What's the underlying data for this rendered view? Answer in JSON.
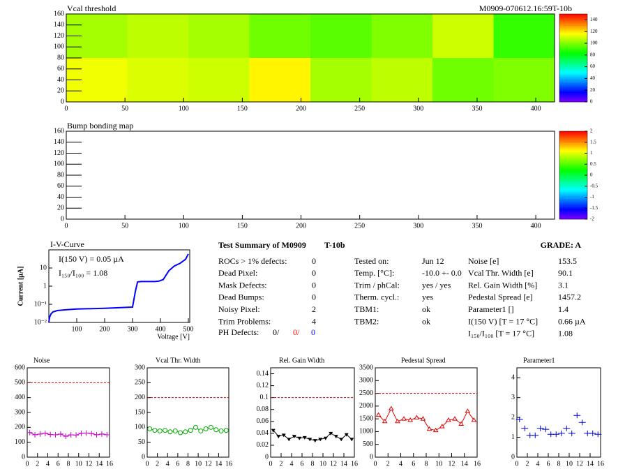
{
  "chart_data": [
    {
      "type": "heatmap",
      "title": "Vcal threshold",
      "subtitle": "M0909-070612.16:59T-10b",
      "xbins": [
        0,
        52,
        104,
        156,
        208,
        260,
        312,
        364,
        416
      ],
      "ybins": [
        0,
        80,
        160
      ],
      "values": [
        [
          115,
          112,
          110,
          118,
          105,
          108,
          98,
          100
        ],
        [
          105,
          108,
          105,
          98,
          95,
          100,
          110,
          90
        ]
      ],
      "xlim": [
        0,
        416
      ],
      "xticks": [
        0,
        50,
        100,
        150,
        200,
        250,
        300,
        350,
        400
      ],
      "ylim": [
        0,
        160
      ],
      "yticks": [
        0,
        20,
        40,
        60,
        80,
        100,
        120,
        140,
        160
      ],
      "zlim": [
        0,
        150
      ],
      "zticks": [
        0,
        20,
        40,
        60,
        80,
        100,
        120,
        140
      ]
    },
    {
      "type": "heatmap",
      "title": "Bump bonding map",
      "xbins": [
        0,
        52,
        104,
        156,
        208,
        260,
        312,
        364,
        416
      ],
      "ybins": [
        0,
        80,
        160
      ],
      "values": [],
      "xlim": [
        0,
        416
      ],
      "xticks": [
        0,
        50,
        100,
        150,
        200,
        250,
        300,
        350,
        400
      ],
      "ylim": [
        0,
        160
      ],
      "yticks": [
        0,
        20,
        40,
        60,
        80,
        100,
        120,
        140,
        160
      ],
      "zlim": [
        -2,
        2
      ],
      "zticks": [
        -2,
        -1.5,
        -1,
        -0.5,
        0,
        0.5,
        1,
        1.5,
        2
      ]
    },
    {
      "type": "line",
      "title": "I-V-Curve",
      "xlabel": "Voltage [V]",
      "ylabel": "Current [µA]",
      "annotations": [
        "I(150 V) = 0.05 µA",
        "I₁₅₀/I₁₀₀ =  1.08"
      ],
      "x": [
        0,
        3,
        8,
        15,
        30,
        60,
        100,
        200,
        300,
        310,
        318,
        330,
        360,
        380,
        395,
        410,
        430,
        450,
        470,
        490,
        500
      ],
      "values": [
        0.01,
        0.02,
        0.03,
        0.038,
        0.045,
        0.05,
        0.055,
        0.06,
        0.07,
        0.5,
        1.7,
        1.8,
        1.8,
        1.8,
        1.9,
        2.3,
        7,
        13,
        18,
        30,
        60
      ],
      "color": "#0000ff",
      "log_y": true,
      "xlim": [
        0,
        505
      ],
      "xticks": [
        100,
        200,
        300,
        400,
        500
      ],
      "ylim": [
        0.01,
        100
      ],
      "yticks": [
        {
          "value": 0.01,
          "label": "10⁻²"
        },
        {
          "value": 0.1,
          "label": "10⁻¹"
        },
        1,
        10
      ]
    },
    {
      "type": "line",
      "title": "Noise",
      "color": "#cc00cc",
      "marker": "plus",
      "connect": true,
      "ref_line": 500,
      "x": [
        0.5,
        1.5,
        2.5,
        3.5,
        4.5,
        5.5,
        6.5,
        7.5,
        8.5,
        9.5,
        10.5,
        11.5,
        12.5,
        13.5,
        14.5,
        15.5
      ],
      "values": [
        165,
        150,
        155,
        160,
        152,
        150,
        155,
        140,
        150,
        148,
        160,
        162,
        158,
        150,
        155,
        150
      ],
      "xlim": [
        0,
        16
      ],
      "xticks": [
        0,
        2,
        4,
        6,
        8,
        10,
        12,
        14,
        16
      ],
      "ylim": [
        0,
        600
      ],
      "yticks": [
        0,
        100,
        200,
        300,
        400,
        500,
        600
      ]
    },
    {
      "type": "line",
      "title": "Vcal Thr. Width",
      "color": "#00aa00",
      "marker": "circle",
      "connect": true,
      "ref_line": 200,
      "x": [
        0.5,
        1.5,
        2.5,
        3.5,
        4.5,
        5.5,
        6.5,
        7.5,
        8.5,
        9.5,
        10.5,
        11.5,
        12.5,
        13.5,
        14.5,
        15.5
      ],
      "values": [
        95,
        90,
        88,
        90,
        85,
        88,
        82,
        85,
        90,
        100,
        88,
        95,
        100,
        92,
        88,
        90
      ],
      "xlim": [
        0,
        16
      ],
      "xticks": [
        0,
        2,
        4,
        6,
        8,
        10,
        12,
        14,
        16
      ],
      "ylim": [
        0,
        300
      ],
      "yticks": [
        0,
        50,
        100,
        150,
        200,
        250,
        300
      ]
    },
    {
      "type": "line",
      "title": "Rel. Gain Width",
      "color": "#000000",
      "marker": "triangle",
      "connect": true,
      "ref_line": 0.1,
      "x": [
        0.5,
        1.5,
        2.5,
        3.5,
        4.5,
        5.5,
        6.5,
        7.5,
        8.5,
        9.5,
        10.5,
        11.5,
        12.5,
        13.5,
        14.5,
        15.5
      ],
      "values": [
        0.045,
        0.035,
        0.037,
        0.03,
        0.035,
        0.032,
        0.033,
        0.03,
        0.028,
        0.03,
        0.032,
        0.04,
        0.035,
        0.03,
        0.038,
        0.03
      ],
      "xlim": [
        0,
        16
      ],
      "xticks": [
        0,
        2,
        4,
        6,
        8,
        10,
        12,
        14,
        16
      ],
      "ylim": [
        0,
        0.15
      ],
      "yticks": [
        0,
        0.02,
        0.04,
        0.06,
        0.08,
        0.1,
        0.12,
        0.14
      ]
    },
    {
      "type": "line",
      "title": "Pedestal Spread",
      "color": "#dd0000",
      "marker": "triangle-open",
      "connect": true,
      "ref_line": 2500,
      "x": [
        0.5,
        1.5,
        2.5,
        3.5,
        4.5,
        5.5,
        6.5,
        7.5,
        8.5,
        9.5,
        10.5,
        11.5,
        12.5,
        13.5,
        14.5,
        15.5
      ],
      "values": [
        1650,
        1400,
        1900,
        1400,
        1500,
        1450,
        1550,
        1500,
        1100,
        1050,
        1200,
        1450,
        1500,
        1300,
        1800,
        1450
      ],
      "xlim": [
        0,
        16
      ],
      "xticks": [
        0,
        2,
        4,
        6,
        8,
        10,
        12,
        14,
        16
      ],
      "ylim": [
        0,
        3500
      ],
      "yticks": [
        0,
        500,
        1000,
        1500,
        2000,
        2500,
        3000,
        3500
      ]
    },
    {
      "type": "line",
      "title": "Parameter1",
      "color": "#0000cc",
      "marker": "cross",
      "connect": false,
      "x": [
        0.5,
        1.5,
        2.5,
        3.5,
        4.5,
        5.5,
        6.5,
        7.5,
        8.5,
        9.5,
        10.5,
        11.5,
        12.5,
        13.5,
        14.5,
        15.5
      ],
      "values": [
        1.9,
        1.45,
        1.1,
        1.1,
        1.45,
        1.4,
        1.15,
        1.15,
        1.2,
        1.45,
        1.2,
        2.1,
        1.75,
        1.2,
        1.2,
        1.15
      ],
      "xlim": [
        0,
        16
      ],
      "xticks": [
        0,
        2,
        4,
        6,
        8,
        10,
        12,
        14,
        16
      ],
      "ylim": [
        0,
        4.5
      ],
      "yticks": [
        0,
        1,
        2,
        3,
        4
      ]
    }
  ],
  "summary": {
    "title": "Test Summary of M0909",
    "module": "T-10b",
    "grade": "GRADE:  A",
    "defects": [
      [
        "ROCs > 1% defects:",
        "0"
      ],
      [
        "Dead Pixel:",
        "0"
      ],
      [
        "Mask Defects:",
        "0"
      ],
      [
        "Dead Bumps:",
        "0"
      ],
      [
        "Noisy Pixel:",
        "2"
      ],
      [
        "Trim Problems:",
        "4"
      ]
    ],
    "ph_defects": {
      "label": "PH Defects:",
      "values": [
        "0/",
        "0/",
        "0"
      ],
      "colors": [
        "#000000",
        "#ff0000",
        "#0000ff"
      ]
    },
    "conditions": [
      [
        "Tested on:",
        "Jun 12"
      ],
      [
        "Temp. [°C]:",
        "-10.0 +- 0.0"
      ],
      [
        "Trim / phCal:",
        "yes / yes"
      ],
      [
        "Therm. cycl.:",
        "yes"
      ],
      [
        "TBM1:",
        "ok"
      ],
      [
        "TBM2:",
        "ok"
      ]
    ],
    "results": [
      [
        "Noise [e]",
        "153.5"
      ],
      [
        "Vcal Thr. Width [e]",
        "90.1"
      ],
      [
        "Rel. Gain Width [%]",
        "3.1"
      ],
      [
        "Pedestal Spread [e]",
        "1457.2"
      ],
      [
        "Parameter1 []",
        "1.4"
      ],
      [
        "I(150 V) [T = 17 °C]",
        "0.66 µA"
      ],
      [
        "I₁₅₀/I₁₀₀  [T = 17 °C]",
        "1.08"
      ]
    ]
  }
}
